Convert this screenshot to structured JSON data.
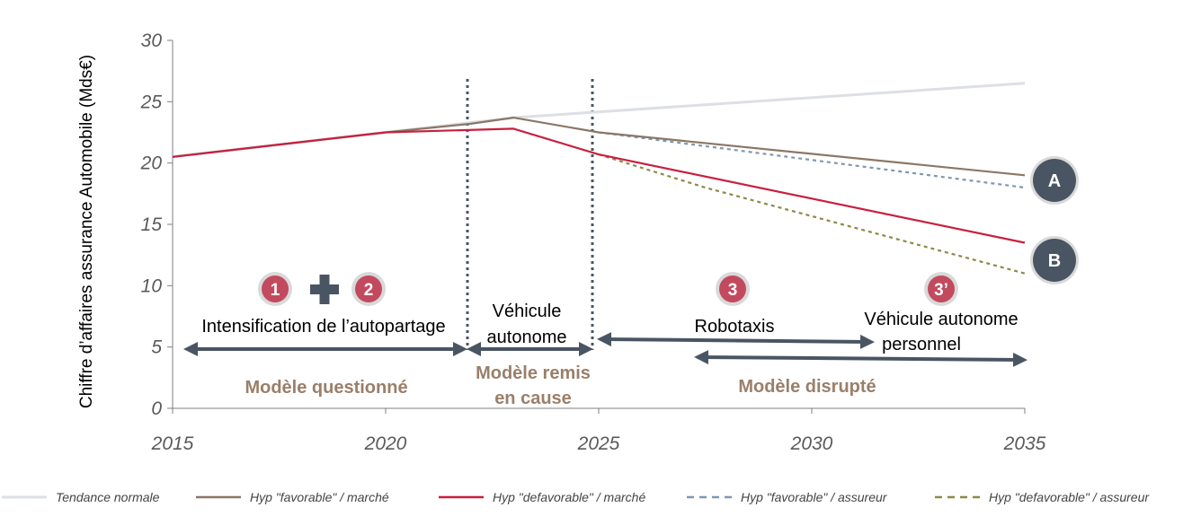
{
  "chart_data": {
    "type": "line",
    "ylabel": "Chiffre d’affaires assurance Automobile (Mds€)",
    "xlabel": "",
    "xlim": [
      2015,
      2035
    ],
    "ylim": [
      0,
      30
    ],
    "x_ticks": [
      "2015",
      "2020",
      "2025",
      "2030",
      "2035"
    ],
    "y_ticks": [
      "0",
      "5",
      "10",
      "15",
      "20",
      "25",
      "30"
    ],
    "grid": false,
    "legend_position": "bottom",
    "series": [
      {
        "name": "Tendance normale",
        "color": "#dcdfe4",
        "style": "solid",
        "x": [
          2015,
          2020,
          2023,
          2035
        ],
        "values": [
          20.5,
          22.5,
          23.7,
          26.5
        ]
      },
      {
        "name": "Hyp \"favorable\" / marché",
        "color": "#8b7766",
        "style": "solid",
        "x": [
          2015,
          2020,
          2022,
          2023,
          2025,
          2035
        ],
        "values": [
          20.5,
          22.5,
          23.2,
          23.7,
          22.5,
          19.0
        ]
      },
      {
        "name": "Hyp \"defavorable\" / marché",
        "color": "#c8203f",
        "style": "solid",
        "x": [
          2015,
          2020,
          2023,
          2025,
          2035
        ],
        "values": [
          20.5,
          22.5,
          22.8,
          20.7,
          13.5
        ]
      },
      {
        "name": "Hyp \"favorable\" / assureur",
        "color": "#7f97b3",
        "style": "dashed",
        "x": [
          2025,
          2035
        ],
        "values": [
          22.5,
          18.0
        ]
      },
      {
        "name": "Hyp \"defavorable\" / assureur",
        "color": "#8c8a46",
        "style": "dashed",
        "x": [
          2025,
          2027.5,
          2035
        ],
        "values": [
          20.7,
          18.0,
          11.0
        ]
      }
    ],
    "annotations": {
      "phase1_text": "Intensification de l’autopartage",
      "phase2_text_line1": "Véhicule",
      "phase2_text_line2": "autonome",
      "robotaxis_text": "Robotaxis",
      "phase3b_text_line1": "Véhicule autonome",
      "phase3b_text_line2": "personnel",
      "model1": "Modèle questionné",
      "model2_line1": "Modèle remis",
      "model2_line2": "en cause",
      "model3": "Modèle disrupté",
      "badge1": "1",
      "badge2": "2",
      "badge3": "3",
      "badge3b": "3’",
      "scenario_a": "A",
      "scenario_b": "B"
    },
    "colors": {
      "badge": "#c24a5f",
      "badge_ring": "#d9d9d9",
      "plus": "#4a5563",
      "arrow": "#4a5563",
      "scenario_circle": "#4a5563",
      "model_text": "#9a7f6a"
    }
  }
}
